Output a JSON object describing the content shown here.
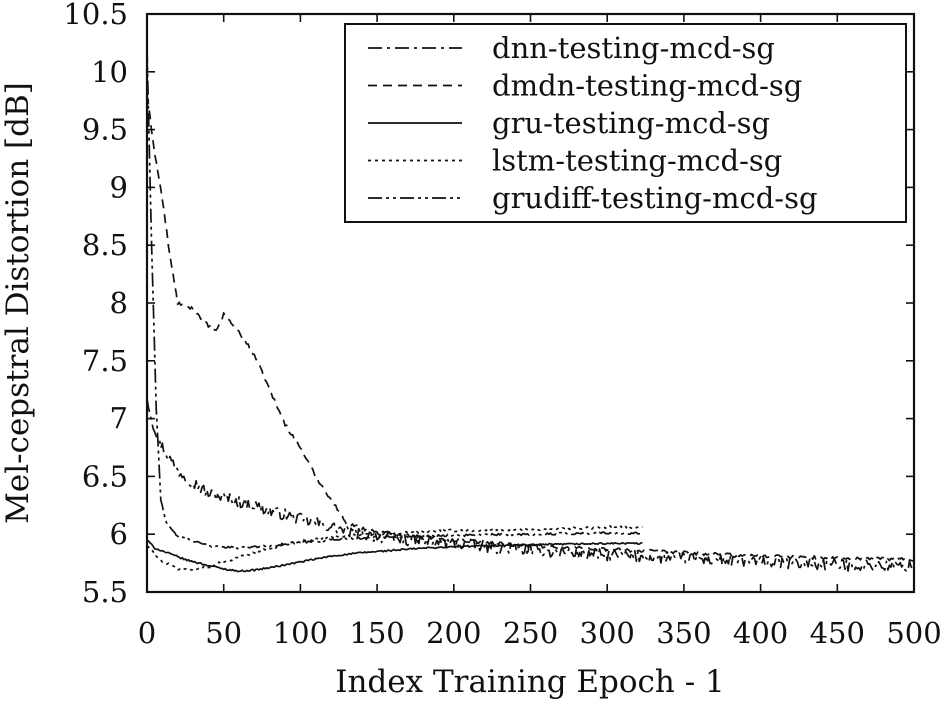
{
  "chart_data": {
    "type": "line",
    "xlabel": "Index Training Epoch - 1",
    "ylabel": "Mel-cepstral Distortion [dB]",
    "xlim": [
      0,
      500
    ],
    "ylim": [
      5.5,
      10.5
    ],
    "xticks": [
      0,
      50,
      100,
      150,
      200,
      250,
      300,
      350,
      400,
      450,
      500
    ],
    "yticks": [
      "5.5",
      "6",
      "6.5",
      "7",
      "7.5",
      "8",
      "8.5",
      "9",
      "9.5",
      "10",
      "10.5"
    ],
    "grid": false,
    "legend_position": "top-right",
    "series": [
      {
        "name": "dnn-testing-mcd-sg",
        "dash": "dash-dot",
        "noise": 0.05,
        "points": [
          [
            0,
            7.2
          ],
          [
            3,
            7.0
          ],
          [
            8,
            6.8
          ],
          [
            15,
            6.65
          ],
          [
            20,
            6.55
          ],
          [
            30,
            6.45
          ],
          [
            40,
            6.35
          ],
          [
            50,
            6.32
          ],
          [
            60,
            6.28
          ],
          [
            70,
            6.25
          ],
          [
            80,
            6.2
          ],
          [
            90,
            6.17
          ],
          [
            100,
            6.13
          ],
          [
            110,
            6.1
          ],
          [
            120,
            6.06
          ],
          [
            130,
            6.03
          ],
          [
            140,
            6.0
          ],
          [
            150,
            5.98
          ],
          [
            170,
            5.95
          ],
          [
            200,
            5.92
          ],
          [
            230,
            5.88
          ],
          [
            260,
            5.85
          ],
          [
            300,
            5.82
          ],
          [
            330,
            5.8
          ],
          [
            380,
            5.77
          ],
          [
            420,
            5.75
          ],
          [
            460,
            5.73
          ],
          [
            500,
            5.72
          ]
        ]
      },
      {
        "name": "dmdn-testing-mcd-sg",
        "dash": "dashed",
        "noise": 0.015,
        "points": [
          [
            0,
            9.8
          ],
          [
            5,
            9.3
          ],
          [
            10,
            8.9
          ],
          [
            15,
            8.4
          ],
          [
            20,
            8.0
          ],
          [
            30,
            7.95
          ],
          [
            40,
            7.8
          ],
          [
            45,
            7.75
          ],
          [
            50,
            7.9
          ],
          [
            60,
            7.75
          ],
          [
            70,
            7.55
          ],
          [
            80,
            7.25
          ],
          [
            90,
            6.95
          ],
          [
            100,
            6.75
          ],
          [
            110,
            6.5
          ],
          [
            120,
            6.3
          ],
          [
            130,
            6.1
          ],
          [
            140,
            6.05
          ],
          [
            150,
            6.02
          ],
          [
            200,
            5.95
          ],
          [
            250,
            5.9
          ],
          [
            300,
            5.87
          ],
          [
            330,
            5.85
          ],
          [
            380,
            5.82
          ],
          [
            430,
            5.8
          ],
          [
            470,
            5.79
          ],
          [
            500,
            5.78
          ]
        ]
      },
      {
        "name": "gru-testing-mcd-sg",
        "dash": "solid",
        "noise": 0.007,
        "points": [
          [
            0,
            5.95
          ],
          [
            5,
            5.88
          ],
          [
            15,
            5.83
          ],
          [
            25,
            5.78
          ],
          [
            40,
            5.73
          ],
          [
            50,
            5.7
          ],
          [
            60,
            5.68
          ],
          [
            70,
            5.69
          ],
          [
            80,
            5.71
          ],
          [
            100,
            5.76
          ],
          [
            120,
            5.81
          ],
          [
            140,
            5.84
          ],
          [
            160,
            5.86
          ],
          [
            180,
            5.88
          ],
          [
            200,
            5.89
          ],
          [
            220,
            5.9
          ],
          [
            260,
            5.91
          ],
          [
            300,
            5.92
          ],
          [
            323,
            5.92
          ]
        ]
      },
      {
        "name": "lstm-testing-mcd-sg",
        "dash": "dotted",
        "noise": 0.012,
        "points": [
          [
            0,
            5.9
          ],
          [
            8,
            5.78
          ],
          [
            20,
            5.7
          ],
          [
            30,
            5.69
          ],
          [
            40,
            5.72
          ],
          [
            60,
            5.8
          ],
          [
            80,
            5.88
          ],
          [
            100,
            5.94
          ],
          [
            120,
            5.98
          ],
          [
            150,
            6.0
          ],
          [
            180,
            6.02
          ],
          [
            200,
            6.03
          ],
          [
            250,
            6.04
          ],
          [
            300,
            6.06
          ],
          [
            323,
            6.06
          ]
        ]
      },
      {
        "name": "grudiff-testing-mcd-sg",
        "dash": "dash-dot-dot",
        "noise": 0.01,
        "points": [
          [
            0,
            10.2
          ],
          [
            3,
            8.5
          ],
          [
            6,
            7.1
          ],
          [
            9,
            6.3
          ],
          [
            13,
            6.08
          ],
          [
            20,
            5.98
          ],
          [
            40,
            5.9
          ],
          [
            60,
            5.88
          ],
          [
            80,
            5.9
          ],
          [
            100,
            5.93
          ],
          [
            130,
            5.96
          ],
          [
            160,
            5.98
          ],
          [
            200,
            5.99
          ],
          [
            250,
            6.0
          ],
          [
            300,
            6.01
          ],
          [
            323,
            6.01
          ]
        ]
      }
    ]
  }
}
